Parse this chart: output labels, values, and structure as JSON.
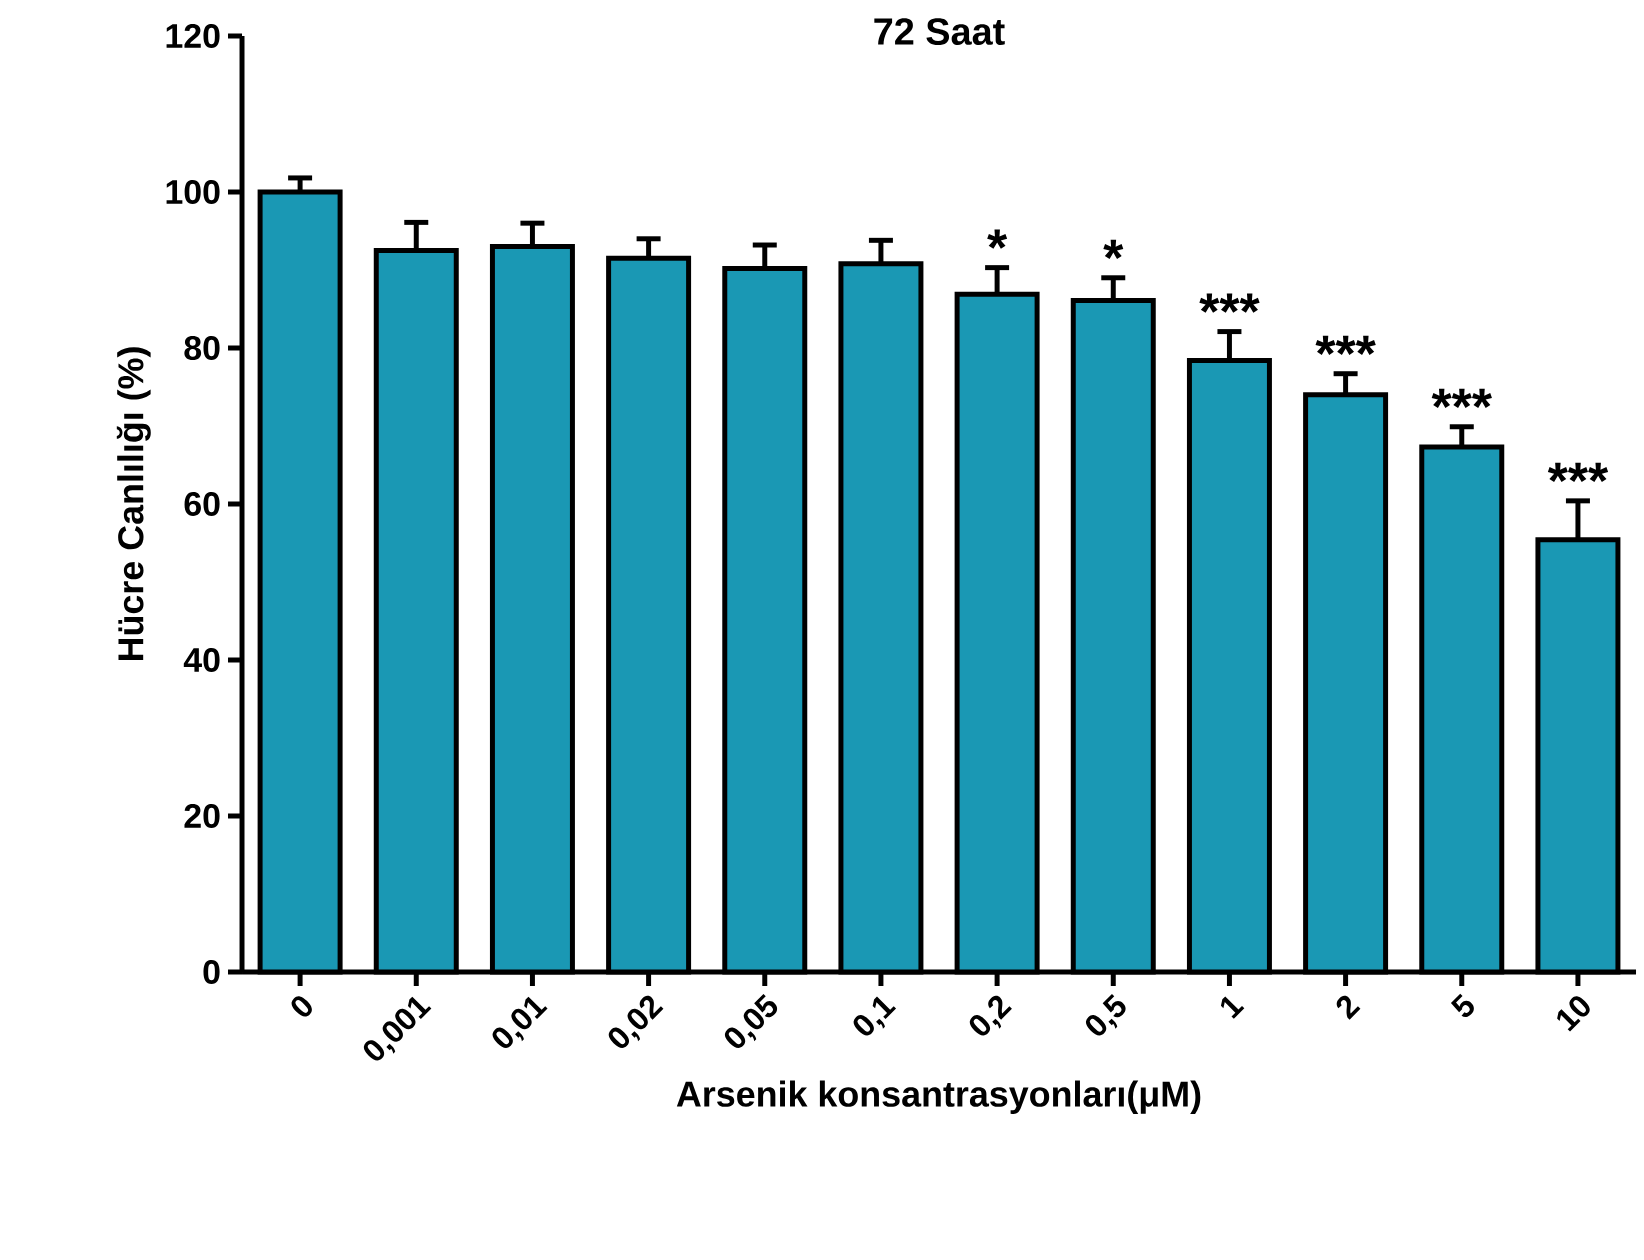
{
  "chart_data": {
    "type": "bar",
    "title": "72 Saat",
    "xlabel": "Arsenik konsantrasyonları(μM)",
    "ylabel": "Hücre Canlılığı (%)",
    "categories": [
      "0",
      "0,001",
      "0,01",
      "0,02",
      "0,05",
      "0,1",
      "0,2",
      "0,5",
      "1",
      "2",
      "5",
      "10"
    ],
    "values": [
      100,
      92.5,
      93,
      91.5,
      90.2,
      90.8,
      86.9,
      86.1,
      78.4,
      74,
      67.3,
      55.4
    ],
    "errors": [
      1.8,
      3.6,
      3,
      2.5,
      3,
      3,
      3.4,
      2.9,
      3.7,
      2.7,
      2.6,
      5
    ],
    "color": "#1a98b4",
    "ylim": [
      0,
      120
    ],
    "yticks": [
      0,
      20,
      40,
      60,
      80,
      100,
      120
    ],
    "annotations": [
      {
        "text": "*",
        "x": "0,2",
        "y": 90.3
      },
      {
        "text": "*",
        "x": "0,5",
        "y": 89
      },
      {
        "text": "***",
        "x": "1",
        "y": 82.1
      },
      {
        "text": "***",
        "x": "2",
        "y": 76.7
      },
      {
        "text": "***",
        "x": "5",
        "y": 69.9
      },
      {
        "text": "***",
        "x": "10",
        "y": 60.4
      }
    ]
  }
}
